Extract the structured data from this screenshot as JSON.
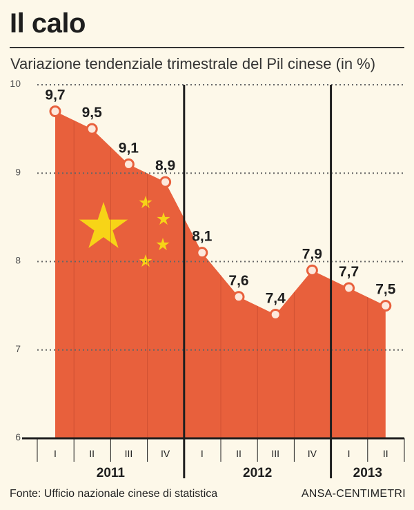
{
  "title": "Il calo",
  "subtitle": "Variazione tendenziale trimestrale del Pil cinese (in %)",
  "source": "Fonte: Ufficio nazionale cinese di statistica",
  "credit": "ANSA-CENTIMETRI",
  "colors": {
    "area": "#e8603c",
    "marker_fill": "#fde8dc",
    "star": "#f7d417",
    "axis": "#1e1e1e",
    "grid": "#666666",
    "background": "#fdf8e9"
  },
  "chart_data": {
    "type": "area",
    "title": "Il calo",
    "subtitle": "Variazione tendenziale trimestrale del Pil cinese (in %)",
    "ylim": [
      6,
      10
    ],
    "yticks": [
      "6",
      "7",
      "8",
      "9",
      "10"
    ],
    "grid": true,
    "categories": [
      "I",
      "II",
      "III",
      "IV",
      "I",
      "II",
      "III",
      "IV",
      "I",
      "II"
    ],
    "years": [
      {
        "label": "2011",
        "quarters": 4
      },
      {
        "label": "2012",
        "quarters": 4
      },
      {
        "label": "2013",
        "quarters": 2
      }
    ],
    "values": [
      9.7,
      9.5,
      9.1,
      8.9,
      8.1,
      7.6,
      7.4,
      7.9,
      7.7,
      7.5
    ],
    "value_labels": [
      "9,7",
      "9,5",
      "9,1",
      "8,9",
      "8,1",
      "7,6",
      "7,4",
      "7,9",
      "7,7",
      "7,5"
    ]
  }
}
